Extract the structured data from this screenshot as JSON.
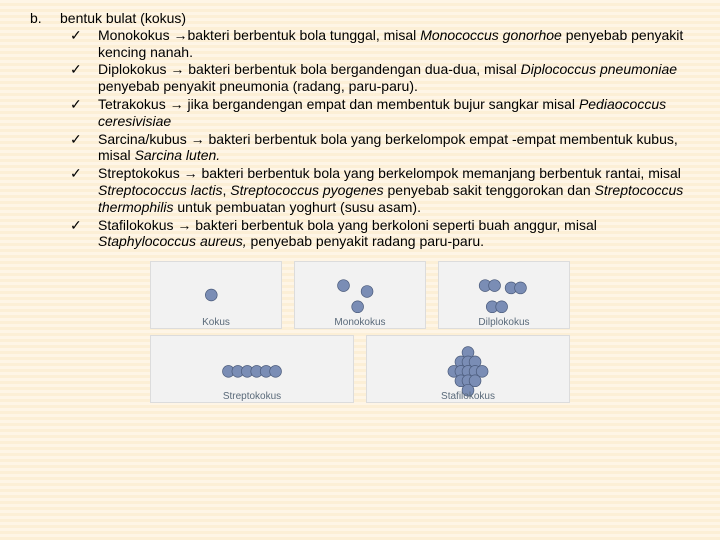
{
  "label": "b.",
  "title": "bentuk bulat (kokus)",
  "check": "✓",
  "items": [
    {
      "pre": "Monokokus →bakteri berbentuk bola tunggal, misal ",
      "it": "Monococcus gonorhoe",
      "post": " penyebab penyakit kencing nanah."
    },
    {
      "pre": "Diplokokus → bakteri berbentuk bola bergandengan dua-dua, misal ",
      "it": "Diplococcus pneumoniae",
      "post": " penyebab penyakit pneumonia (radang, paru-paru)."
    },
    {
      "pre": "Tetrakokus → jika bergandengan empat dan membentuk bujur sangkar misal ",
      "it": "Pediaococcus  ceresivisiae",
      "post": ""
    },
    {
      "pre": "Sarcina/kubus → bakteri berbentuk bola yang berkelompok empat -empat membentuk kubus, misal ",
      "it": "Sarcina luten.",
      "post": ""
    },
    {
      "full": "Streptokokus → bakteri berbentuk bola yang berkelompok memanjang berbentuk rantai, misal <span class=\"italic\">Streptococcus lactis</span>, <span class=\"italic\">Streptococcus pyogenes</span> penyebab sakit tenggorokan dan <span class=\"italic\">Streptococcus thermophilis</span> untuk pembuatan yoghurt (susu asam)."
    },
    {
      "pre": "Stafilokokus → bakteri berbentuk bola yang berkoloni seperti buah anggur, misal ",
      "it": "Staphylococcus aureus,",
      "post": " penyebab penyakit radang paru-paru."
    }
  ],
  "diagram": {
    "cocci_fill": "#7a8db5",
    "cocci_stroke": "#4a5a7a",
    "row1": [
      {
        "label": "Kokus",
        "circles": [
          [
            30,
            28
          ]
        ]
      },
      {
        "label": "Monokokus",
        "circles": [
          [
            20,
            20
          ],
          [
            40,
            25
          ],
          [
            32,
            38
          ]
        ]
      },
      {
        "label": "Dilplokokus",
        "circles": [
          [
            18,
            20
          ],
          [
            26,
            20
          ],
          [
            40,
            22
          ],
          [
            48,
            22
          ],
          [
            24,
            38
          ],
          [
            32,
            38
          ]
        ]
      }
    ],
    "row2": [
      {
        "label": "Streptokokus",
        "circles": [
          [
            14,
            30
          ],
          [
            22,
            30
          ],
          [
            30,
            30
          ],
          [
            38,
            30
          ],
          [
            46,
            30
          ],
          [
            54,
            30
          ]
        ]
      },
      {
        "label": "Stafilokokus",
        "circles": [
          [
            34,
            14
          ],
          [
            28,
            22
          ],
          [
            34,
            22
          ],
          [
            40,
            22
          ],
          [
            22,
            30
          ],
          [
            28,
            30
          ],
          [
            34,
            30
          ],
          [
            40,
            30
          ],
          [
            46,
            30
          ],
          [
            28,
            38
          ],
          [
            34,
            38
          ],
          [
            40,
            38
          ],
          [
            34,
            46
          ]
        ]
      }
    ]
  }
}
